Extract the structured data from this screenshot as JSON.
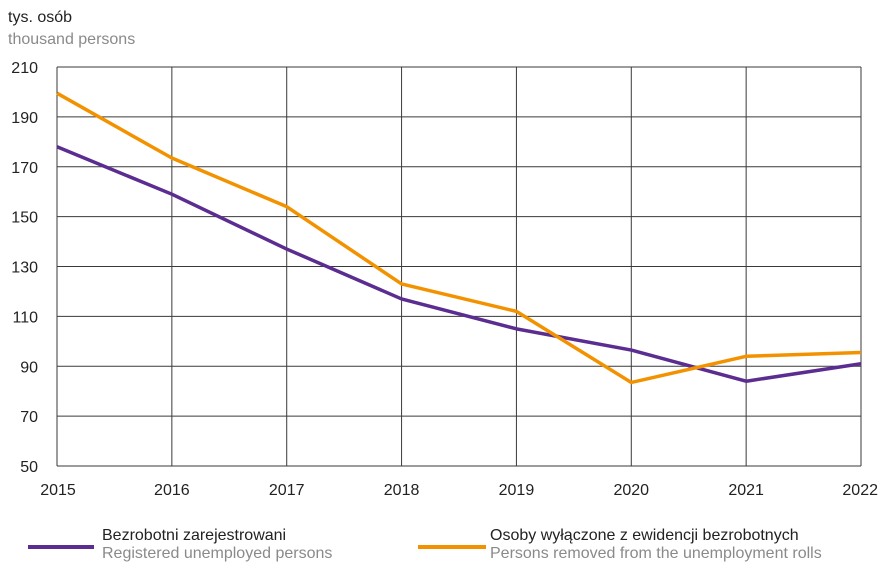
{
  "unit_label_pl": "tys. osób",
  "unit_label_en": "thousand persons",
  "chart_data": {
    "type": "line",
    "x": [
      2015,
      2016,
      2017,
      2018,
      2019,
      2020,
      2021,
      2022
    ],
    "ylim": [
      50,
      210
    ],
    "y_ticks": [
      50,
      70,
      90,
      110,
      130,
      150,
      170,
      190,
      210
    ],
    "grid": true,
    "legend_position": "bottom",
    "series": [
      {
        "name": "Bezrobotni zarejestrowani",
        "name_en": "Registered unemployed persons",
        "color": "#5b2d91",
        "values": [
          178,
          159,
          137,
          117,
          105,
          96.5,
          84,
          91
        ]
      },
      {
        "name": "Osoby wyłączone z ewidencji bezrobotnych",
        "name_en": "Persons removed from the unemployment rolls",
        "color": "#f39200",
        "values": [
          199.5,
          173.5,
          154,
          123,
          112,
          83.5,
          94,
          95.5
        ]
      }
    ]
  }
}
